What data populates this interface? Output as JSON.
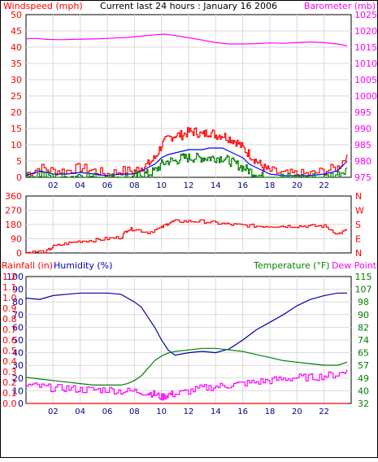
{
  "header": {
    "title": "Current last 24 hours : January 16 2006"
  },
  "colors": {
    "windspeed": "#ff0000",
    "windavg": "#0000ff",
    "gust_low": "#008000",
    "barometer": "#ff00ff",
    "direction": "#ff0000",
    "humidity": "#0000aa",
    "temperature": "#008000",
    "dewpoint": "#ff00ff",
    "rainfall": "#ff0000",
    "axis_left_blue": "#0000aa",
    "axis_right_green": "#008000",
    "grid": "#d9d9d9"
  },
  "chart_data": [
    {
      "type": "line",
      "name": "wind-barometer",
      "left_label": "Windspeed (mph)",
      "right_label": "Barometer (mb)",
      "x_ticks": [
        "02",
        "04",
        "06",
        "08",
        "10",
        "12",
        "14",
        "16",
        "18",
        "20",
        "22"
      ],
      "left_ticks": [
        "0",
        "5",
        "10",
        "15",
        "20",
        "25",
        "30",
        "35",
        "40",
        "45",
        "50"
      ],
      "right_ticks": [
        "975",
        "980",
        "985",
        "990",
        "995",
        "1000",
        "1005",
        "1010",
        "1015",
        "1020",
        "1025"
      ],
      "ylim_left": [
        0,
        50
      ],
      "ylim_right": [
        975,
        1025
      ],
      "xlim": [
        0,
        24
      ],
      "series": [
        {
          "key": "barometer",
          "axis": "right",
          "color": "barometer",
          "x": [
            0,
            0.8,
            1.5,
            2.5,
            3.5,
            4.5,
            5.5,
            6.5,
            7.5,
            8.5,
            9.5,
            10.2,
            11,
            12,
            13,
            14,
            15,
            16,
            17,
            18,
            19,
            20,
            21,
            22,
            23,
            23.7
          ],
          "y": [
            1017.6,
            1017.7,
            1017.4,
            1017.3,
            1017.4,
            1017.5,
            1017.6,
            1017.8,
            1018.0,
            1018.4,
            1018.8,
            1019.0,
            1018.6,
            1017.9,
            1017.2,
            1016.4,
            1016.0,
            1016.0,
            1016.1,
            1016.3,
            1016.2,
            1016.4,
            1016.6,
            1016.4,
            1016.0,
            1015.4
          ]
        },
        {
          "key": "windspeed",
          "axis": "left",
          "color": "windspeed",
          "jagged": true,
          "x": [
            0,
            1,
            2,
            3,
            4,
            5,
            6,
            7,
            8,
            8.5,
            9,
            9.5,
            10,
            10.5,
            11,
            11.5,
            12,
            12.5,
            13,
            13.5,
            14,
            14.5,
            15,
            15.5,
            16,
            16.5,
            17,
            17.5,
            18,
            19,
            20,
            21,
            22,
            23,
            23.7
          ],
          "y": [
            1,
            3,
            2,
            2,
            3,
            2,
            1,
            2,
            2,
            3,
            4,
            6,
            10,
            12,
            13,
            13,
            14,
            14,
            13,
            14,
            13,
            13,
            12,
            11,
            9,
            7,
            5,
            3,
            2,
            1,
            1,
            1,
            2,
            3,
            7
          ]
        },
        {
          "key": "windavg",
          "axis": "left",
          "color": "windavg",
          "x": [
            0,
            1,
            2,
            3,
            4,
            5,
            6,
            7,
            8,
            8.5,
            9,
            9.5,
            10,
            10.5,
            11,
            11.5,
            12,
            12.5,
            13,
            13.5,
            14,
            14.5,
            15,
            15.5,
            16,
            16.5,
            17,
            17.5,
            18,
            19,
            20,
            21,
            22,
            23,
            23.7
          ],
          "y": [
            0.5,
            2,
            1,
            1,
            1.5,
            1,
            0.5,
            1,
            1,
            2,
            3,
            4,
            6,
            7,
            7.5,
            8,
            8.5,
            8.5,
            8.5,
            9,
            9,
            9,
            8,
            7,
            6,
            4,
            3,
            2,
            1,
            0.5,
            0.5,
            0.5,
            1,
            2,
            5
          ]
        },
        {
          "key": "gust_low",
          "axis": "left",
          "color": "gust_low",
          "jagged": true,
          "x": [
            0,
            1,
            2,
            3,
            4,
            5,
            6,
            7,
            8,
            8.5,
            9,
            9.5,
            10,
            10.5,
            11,
            11.5,
            12,
            12.5,
            13,
            13.5,
            14,
            14.5,
            15,
            15.5,
            16,
            16.5,
            17,
            17.5,
            18,
            19,
            20,
            21,
            22,
            23,
            23.7
          ],
          "y": [
            0,
            1,
            0,
            0,
            1,
            0,
            0,
            0,
            0,
            1,
            1,
            2,
            4,
            5,
            5,
            6,
            6,
            6,
            6,
            6,
            6,
            6,
            5,
            4,
            3,
            2,
            1,
            0,
            0,
            0,
            0,
            0,
            0,
            1,
            3
          ]
        }
      ]
    },
    {
      "type": "line",
      "name": "wind-direction",
      "left_ticks": [
        "0",
        "90",
        "180",
        "270",
        "360"
      ],
      "right_ticks": [
        "N",
        "E",
        "S",
        "W",
        "N"
      ],
      "ylim": [
        0,
        360
      ],
      "xlim": [
        0,
        24
      ],
      "series": [
        {
          "key": "direction",
          "axis": "left",
          "color": "direction",
          "jagged": true,
          "x": [
            0,
            0.3,
            1.5,
            2,
            3,
            4,
            5,
            6,
            7,
            7.5,
            8,
            9,
            10,
            10.5,
            11,
            12,
            13,
            14,
            15,
            16,
            17,
            18,
            19,
            20,
            21,
            22,
            23,
            23.7
          ],
          "y": [
            0,
            5,
            10,
            40,
            60,
            75,
            80,
            90,
            100,
            150,
            150,
            130,
            160,
            190,
            200,
            200,
            200,
            190,
            180,
            175,
            170,
            170,
            170,
            170,
            170,
            170,
            120,
            145
          ]
        }
      ]
    },
    {
      "type": "line",
      "name": "humidity-temperature-rain",
      "rain_label": "Rainfall (in)",
      "humidity_label": "Humidity (%)",
      "temp_label": "Temperature (°F)",
      "dew_label": "Dew Point",
      "humidity_ticks": [
        "0",
        "10",
        "20",
        "30",
        "40",
        "50",
        "60",
        "70",
        "80",
        "90",
        "100"
      ],
      "rain_ticks": [
        "0.0",
        "0.1",
        "0.2",
        "0.3",
        "0.4",
        "0.5",
        "0.6",
        "0.7",
        "0.8",
        "0.9",
        "1.0",
        "1.1",
        "1.2"
      ],
      "temp_ticks": [
        "32",
        "40",
        "49",
        "57",
        "65",
        "74",
        "82",
        "90",
        "98",
        "107",
        "115"
      ],
      "ylim_humidity": [
        0,
        100
      ],
      "ylim_temp": [
        32,
        115
      ],
      "xlim": [
        0,
        24
      ],
      "series": [
        {
          "key": "humidity",
          "axis": "humidity",
          "color": "humidity",
          "x": [
            0,
            1,
            2,
            3,
            4,
            5,
            6,
            7,
            8,
            8.5,
            9,
            9.5,
            10,
            10.5,
            11,
            12,
            13,
            14,
            15,
            16,
            17,
            18,
            19,
            20,
            21,
            22,
            23,
            23.7
          ],
          "y": [
            83,
            82,
            85,
            86,
            87,
            87,
            87,
            86,
            80,
            76,
            68,
            60,
            50,
            42,
            38,
            40,
            41,
            40,
            43,
            50,
            58,
            64,
            70,
            77,
            82,
            85,
            87,
            87
          ]
        },
        {
          "key": "temperature",
          "axis": "temp",
          "color": "temperature",
          "x": [
            0,
            1,
            2,
            3,
            4,
            5,
            6,
            7,
            7.5,
            8,
            8.5,
            9,
            9.5,
            10,
            10.5,
            11,
            12,
            13,
            14,
            15,
            16,
            17,
            18,
            19,
            20,
            21,
            22,
            23,
            23.7
          ],
          "y": [
            49,
            48,
            47,
            46,
            45,
            44,
            44,
            44,
            45,
            47,
            50,
            55,
            60,
            63,
            65,
            66,
            67,
            68,
            68,
            67,
            66,
            64,
            62,
            60,
            59,
            58,
            57,
            57,
            59
          ]
        },
        {
          "key": "dewpoint",
          "axis": "temp",
          "color": "dewpoint",
          "jagged": true,
          "x": [
            0,
            1,
            2,
            3,
            4,
            5,
            6,
            7,
            8,
            9,
            9.5,
            10,
            10.5,
            11,
            12,
            13,
            14,
            15,
            16,
            17,
            18,
            19,
            20,
            21,
            22,
            23,
            23.7
          ],
          "y": [
            44,
            43,
            42,
            42,
            41,
            41,
            41,
            40,
            40,
            39,
            38,
            36,
            38,
            38,
            40,
            42,
            43,
            44,
            45,
            46,
            47,
            48,
            49,
            49,
            50,
            51,
            54
          ]
        },
        {
          "key": "rainfall",
          "axis": "humidity",
          "color": "rainfall",
          "x": [
            0,
            23.7
          ],
          "y": [
            0,
            0
          ]
        }
      ]
    }
  ]
}
